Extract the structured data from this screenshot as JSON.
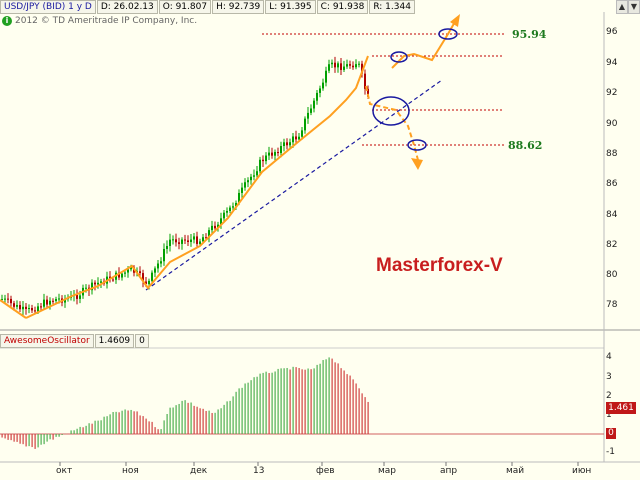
{
  "header": {
    "symbol": "USD/JPY (BID) 1 y D",
    "date": "D: 26.02.13",
    "open": "O: 91.807",
    "high": "H: 92.739",
    "low": "L: 91.395",
    "close": "C: 91.938",
    "range": "R: 1.344"
  },
  "copyright": "2012 © TD Ameritrade IP Company, Inc.",
  "watermark": "Masterforex-V",
  "levels": {
    "upper": "95.94",
    "lower": "88.62"
  },
  "price_axis": [
    "96",
    "94",
    "92",
    "90",
    "88",
    "86",
    "84",
    "82",
    "80",
    "78"
  ],
  "osc_axis": [
    "4",
    "3",
    "2",
    "1",
    "0",
    "-1"
  ],
  "oscillator": {
    "name": "AwesomeOscillator",
    "value": "1.4609",
    "extra": "0",
    "badge": "1.461",
    "zero_badge": "0"
  },
  "months": [
    "окт",
    "ноя",
    "дек",
    "13",
    "фев",
    "мар",
    "апр",
    "май",
    "июн"
  ],
  "colors": {
    "bull": "#00a000",
    "bear": "#b00000",
    "trend": "#ffa020",
    "support": "#1a1aa0",
    "level": "#c00000",
    "osc_up": "#4caf50",
    "osc_down": "#d04040"
  }
}
